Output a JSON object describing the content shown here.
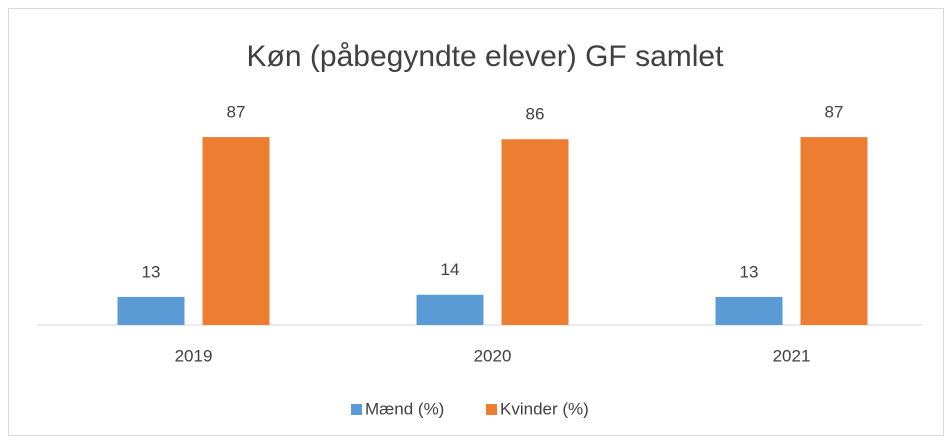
{
  "chart_data": {
    "type": "bar",
    "title": "Køn (påbegyndte elever) GF samlet",
    "categories": [
      "2019",
      "2020",
      "2021"
    ],
    "series": [
      {
        "name": "Mænd (%)",
        "color": "#5b9bd5",
        "values": [
          13,
          14,
          13
        ]
      },
      {
        "name": "Kvinder (%)",
        "color": "#ed7d31",
        "values": [
          87,
          86,
          87
        ]
      }
    ],
    "legend": "bottom"
  }
}
